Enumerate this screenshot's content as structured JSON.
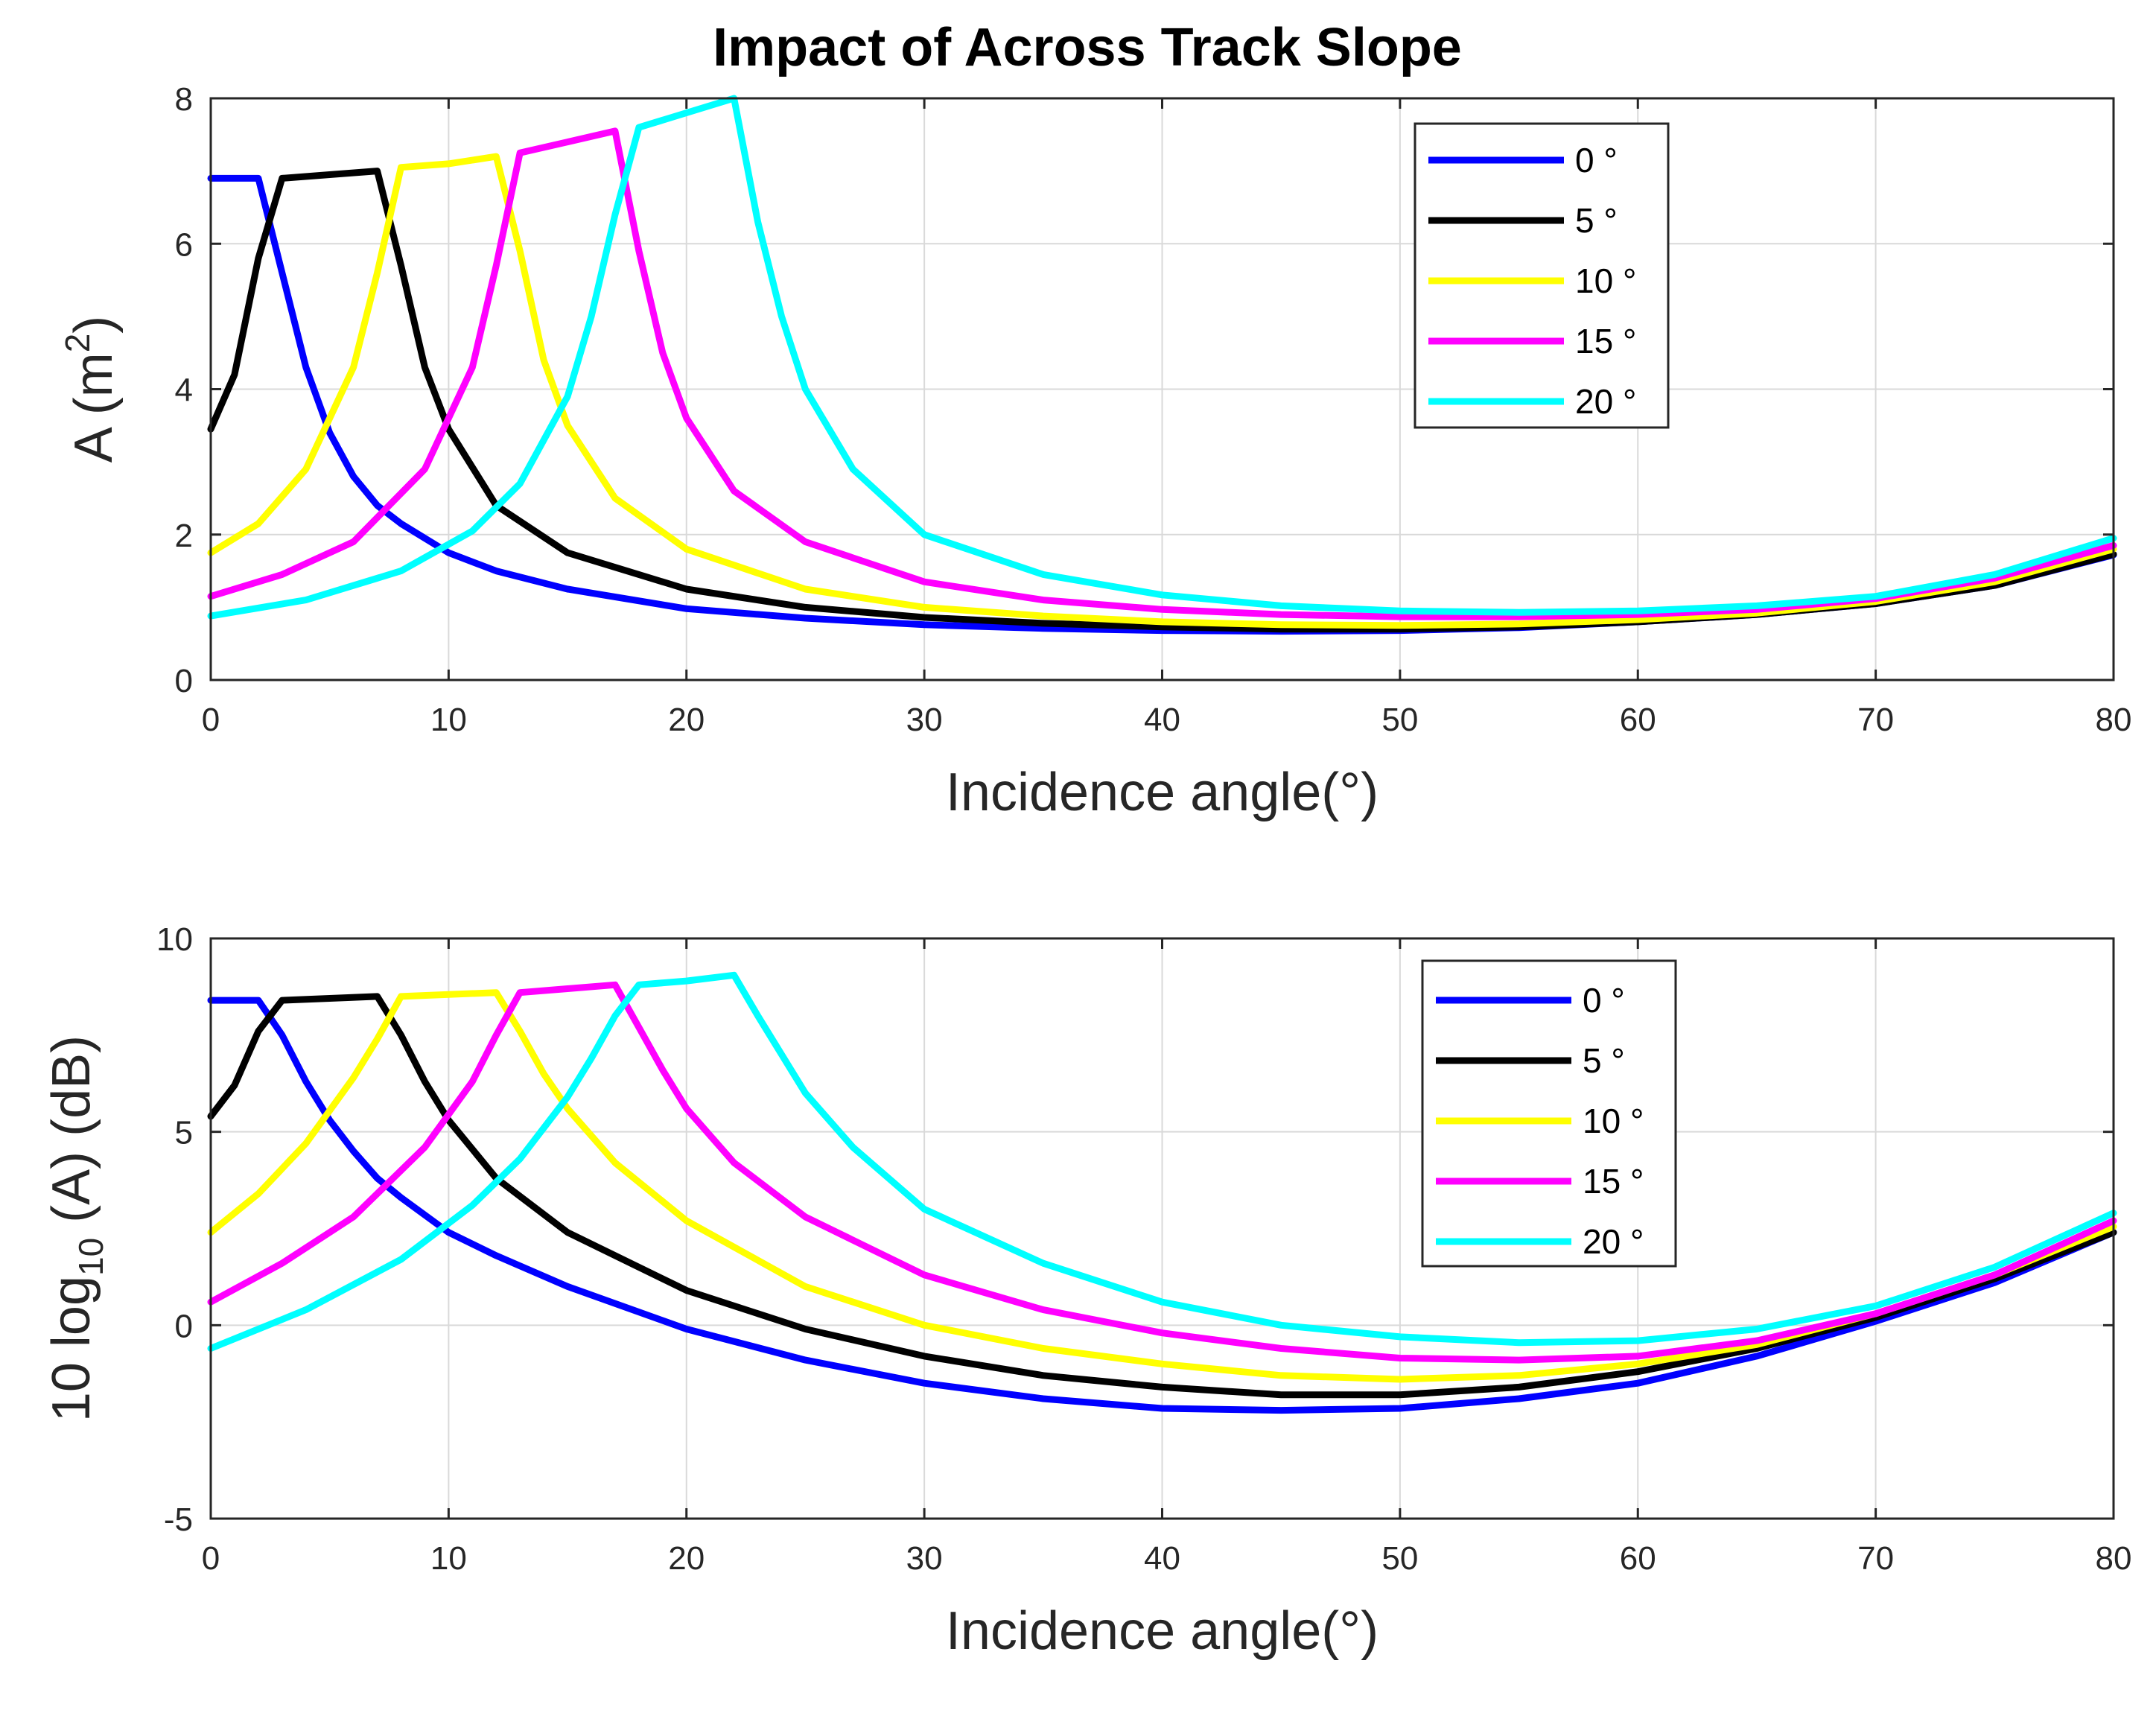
{
  "figure_title": "Impact of Across Track Slope",
  "chart_data": [
    {
      "type": "line",
      "title": "Impact of Across Track Slope",
      "xlabel": "Incidence angle(°)",
      "ylabel": "A (m²)",
      "ylabel_main": "A (m",
      "ylabel_sup": "2",
      "ylabel_end": ")",
      "xlim": [
        0,
        80
      ],
      "ylim": [
        0,
        8
      ],
      "xticks": [
        0,
        10,
        20,
        30,
        40,
        50,
        60,
        70,
        80
      ],
      "yticks": [
        0,
        2,
        4,
        6,
        8
      ],
      "xtick_labels": [
        "0",
        "10",
        "20",
        "30",
        "40",
        "50",
        "60",
        "70",
        "80"
      ],
      "ytick_labels": [
        "0",
        "2",
        "4",
        "6",
        "8"
      ],
      "grid": true,
      "legend_position": "top-right",
      "series": [
        {
          "name": "0 °",
          "color": "#0000ff",
          "x": [
            0,
            2,
            3,
            4,
            5,
            6,
            7,
            8,
            10,
            12,
            15,
            20,
            25,
            30,
            35,
            40,
            45,
            50,
            55,
            60,
            65,
            70,
            75,
            80
          ],
          "y": [
            6.9,
            6.9,
            5.6,
            4.3,
            3.4,
            2.8,
            2.4,
            2.15,
            1.75,
            1.5,
            1.25,
            0.98,
            0.85,
            0.76,
            0.71,
            0.68,
            0.67,
            0.68,
            0.72,
            0.8,
            0.9,
            1.05,
            1.3,
            1.72
          ]
        },
        {
          "name": "5 °",
          "color": "#000000",
          "x": [
            0,
            1,
            2,
            3,
            5,
            7,
            8,
            9,
            10,
            12,
            15,
            20,
            25,
            30,
            35,
            40,
            45,
            50,
            55,
            60,
            65,
            70,
            75,
            80
          ],
          "y": [
            3.45,
            4.2,
            5.8,
            6.9,
            6.95,
            7.0,
            5.7,
            4.3,
            3.45,
            2.4,
            1.75,
            1.25,
            1.0,
            0.86,
            0.78,
            0.73,
            0.7,
            0.7,
            0.73,
            0.8,
            0.9,
            1.05,
            1.3,
            1.73
          ]
        },
        {
          "name": "10 °",
          "color": "#ffff00",
          "x": [
            0,
            2,
            4,
            6,
            7,
            8,
            10,
            12,
            13,
            14,
            15,
            17,
            20,
            25,
            30,
            35,
            40,
            45,
            50,
            55,
            60,
            65,
            70,
            75,
            80
          ],
          "y": [
            1.75,
            2.15,
            2.9,
            4.3,
            5.6,
            7.05,
            7.1,
            7.2,
            5.9,
            4.4,
            3.5,
            2.5,
            1.8,
            1.25,
            1.0,
            0.88,
            0.8,
            0.76,
            0.75,
            0.77,
            0.83,
            0.92,
            1.08,
            1.35,
            1.8
          ]
        },
        {
          "name": "15 °",
          "color": "#ff00ff",
          "x": [
            0,
            3,
            6,
            9,
            11,
            12,
            13,
            15,
            17,
            18,
            19,
            20,
            22,
            25,
            30,
            35,
            40,
            45,
            50,
            55,
            60,
            65,
            70,
            75,
            80
          ],
          "y": [
            1.15,
            1.45,
            1.9,
            2.9,
            4.3,
            5.7,
            7.25,
            7.4,
            7.55,
            5.9,
            4.5,
            3.6,
            2.6,
            1.9,
            1.35,
            1.1,
            0.97,
            0.9,
            0.87,
            0.87,
            0.9,
            0.97,
            1.12,
            1.4,
            1.85
          ]
        },
        {
          "name": "20 °",
          "color": "#00ffff",
          "x": [
            0,
            4,
            8,
            11,
            13,
            15,
            16,
            17,
            18,
            20,
            22,
            23,
            24,
            25,
            27,
            30,
            35,
            40,
            45,
            50,
            55,
            60,
            65,
            70,
            75,
            80
          ],
          "y": [
            0.88,
            1.1,
            1.5,
            2.05,
            2.7,
            3.9,
            5.0,
            6.4,
            7.6,
            7.8,
            8.0,
            6.3,
            5.0,
            4.0,
            2.9,
            2.0,
            1.45,
            1.17,
            1.02,
            0.95,
            0.93,
            0.95,
            1.02,
            1.15,
            1.45,
            1.95
          ]
        }
      ]
    },
    {
      "type": "line",
      "xlabel": "Incidence angle(°)",
      "ylabel": "10 log₁₀ (A) (dB)",
      "ylabel_main": "10 log",
      "ylabel_sub": "10",
      "ylabel_end": " (A) (dB)",
      "xlim": [
        0,
        80
      ],
      "ylim": [
        -5,
        10
      ],
      "xticks": [
        0,
        10,
        20,
        30,
        40,
        50,
        60,
        70,
        80
      ],
      "yticks": [
        -5,
        0,
        5,
        10
      ],
      "xtick_labels": [
        "0",
        "10",
        "20",
        "30",
        "40",
        "50",
        "60",
        "70",
        "80"
      ],
      "ytick_labels": [
        "-5",
        "0",
        "5",
        "10"
      ],
      "grid": true,
      "legend_position": "top-right",
      "series": [
        {
          "name": "0 °",
          "color": "#0000ff",
          "x": [
            0,
            2,
            3,
            4,
            5,
            6,
            7,
            8,
            10,
            12,
            15,
            20,
            25,
            30,
            35,
            40,
            45,
            50,
            55,
            60,
            65,
            70,
            75,
            80
          ],
          "y": [
            8.4,
            8.4,
            7.5,
            6.3,
            5.3,
            4.5,
            3.8,
            3.3,
            2.4,
            1.8,
            1.0,
            -0.1,
            -0.9,
            -1.5,
            -1.9,
            -2.15,
            -2.2,
            -2.15,
            -1.9,
            -1.5,
            -0.8,
            0.1,
            1.1,
            2.4
          ]
        },
        {
          "name": "5 °",
          "color": "#000000",
          "x": [
            0,
            1,
            2,
            3,
            5,
            7,
            8,
            9,
            10,
            12,
            15,
            20,
            25,
            30,
            35,
            40,
            45,
            50,
            55,
            60,
            65,
            70,
            75,
            80
          ],
          "y": [
            5.4,
            6.2,
            7.6,
            8.4,
            8.45,
            8.5,
            7.5,
            6.3,
            5.3,
            3.8,
            2.4,
            0.9,
            -0.1,
            -0.8,
            -1.3,
            -1.6,
            -1.8,
            -1.8,
            -1.6,
            -1.2,
            -0.6,
            0.2,
            1.2,
            2.4
          ]
        },
        {
          "name": "10 °",
          "color": "#ffff00",
          "x": [
            0,
            2,
            4,
            6,
            7,
            8,
            10,
            12,
            13,
            14,
            15,
            17,
            20,
            25,
            30,
            35,
            40,
            45,
            50,
            55,
            60,
            65,
            70,
            75,
            80
          ],
          "y": [
            2.4,
            3.4,
            4.7,
            6.4,
            7.4,
            8.5,
            8.55,
            8.6,
            7.6,
            6.5,
            5.6,
            4.2,
            2.7,
            1.0,
            0.0,
            -0.6,
            -1.0,
            -1.3,
            -1.4,
            -1.3,
            -1.0,
            -0.5,
            0.3,
            1.3,
            2.55
          ]
        },
        {
          "name": "15 °",
          "color": "#ff00ff",
          "x": [
            0,
            3,
            6,
            9,
            11,
            12,
            13,
            15,
            17,
            18,
            19,
            20,
            22,
            25,
            30,
            35,
            40,
            45,
            50,
            55,
            60,
            65,
            70,
            75,
            80
          ],
          "y": [
            0.6,
            1.6,
            2.8,
            4.6,
            6.3,
            7.5,
            8.6,
            8.7,
            8.8,
            7.7,
            6.6,
            5.6,
            4.2,
            2.8,
            1.3,
            0.4,
            -0.2,
            -0.6,
            -0.85,
            -0.9,
            -0.8,
            -0.4,
            0.3,
            1.3,
            2.7
          ]
        },
        {
          "name": "20 °",
          "color": "#00ffff",
          "x": [
            0,
            4,
            8,
            11,
            13,
            15,
            16,
            17,
            18,
            20,
            22,
            23,
            24,
            25,
            27,
            30,
            35,
            40,
            45,
            50,
            55,
            60,
            65,
            70,
            75,
            80
          ],
          "y": [
            -0.6,
            0.4,
            1.7,
            3.1,
            4.3,
            5.9,
            6.9,
            8.0,
            8.8,
            8.9,
            9.05,
            8.0,
            7.0,
            6.0,
            4.6,
            3.0,
            1.6,
            0.6,
            0.0,
            -0.3,
            -0.45,
            -0.4,
            -0.1,
            0.5,
            1.5,
            2.9
          ]
        }
      ]
    }
  ]
}
